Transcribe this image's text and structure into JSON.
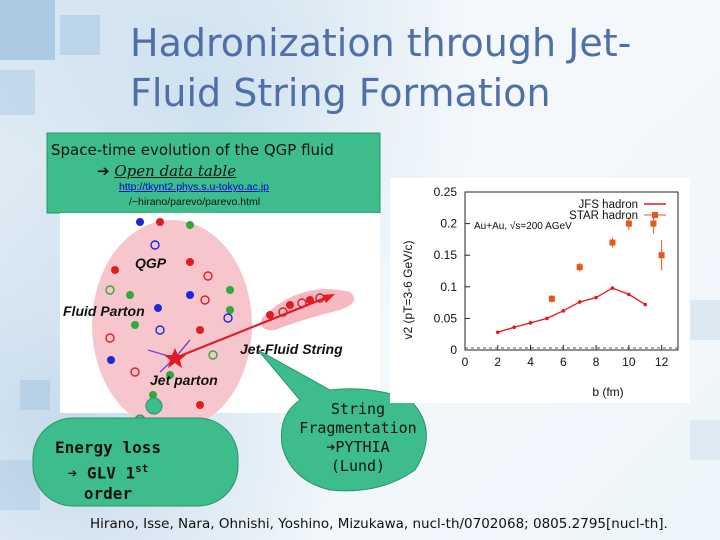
{
  "slide": {
    "title": "Hadronization through Jet-Fluid String Formation",
    "title_line1": "Hadronization through Jet-",
    "title_line2": "Fluid String Formation"
  },
  "callout_top": {
    "line1": "Space-time evolution of the QGP fluid",
    "arrow": "➔",
    "line2": "Open data table",
    "url_line1": "http://tkynt2.phys.s.u-tokyo.ac.jp",
    "url_line2": "/~hirano/parevo/parevo.html"
  },
  "diagram": {
    "labels": {
      "qgp": "QGP",
      "fluid_parton": "Fluid Parton",
      "jet_fluid_string": "Jet-Fluid String",
      "jet_parton": "Jet parton"
    }
  },
  "callout_energy": {
    "line1": "Energy loss",
    "arrow": "➔",
    "line2_prefix": " GLV 1",
    "line2_sup": "st",
    "line3": "order"
  },
  "callout_string": {
    "line1": "String",
    "line2": "Fragmentation",
    "arrow": "➔",
    "line3": "PYTHIA",
    "line4": "(Lund)"
  },
  "chart_data": {
    "type": "line",
    "xlabel": "b (fm)",
    "ylabel": "v2 (pT=3-6 GeV/c)",
    "xlim": [
      0,
      13
    ],
    "ylim": [
      0,
      0.25
    ],
    "xticks": [
      "0",
      "2",
      "4",
      "6",
      "8",
      "10",
      "12"
    ],
    "yticks": [
      "0",
      "0.05",
      "0.1",
      "0.15",
      "0.2",
      "0.25"
    ],
    "annotation": "Au+Au, √s=200 AGeV",
    "legend_position": "top-right",
    "series": [
      {
        "name": "JFS hadron",
        "style": "line",
        "color": "#e8141e",
        "x": [
          2,
          3,
          4,
          5,
          6,
          7,
          8,
          9,
          10,
          11
        ],
        "y": [
          0.028,
          0.036,
          0.043,
          0.05,
          0.062,
          0.076,
          0.083,
          0.098,
          0.088,
          0.072
        ]
      },
      {
        "name": "STAR hadron",
        "style": "points-with-errors",
        "color": "#e8561c",
        "x": [
          5.3,
          7.0,
          9.0,
          10.0,
          11.5,
          12.0
        ],
        "y": [
          0.081,
          0.131,
          0.17,
          0.2,
          0.2,
          0.15
        ],
        "yerr": [
          0.006,
          0.007,
          0.008,
          0.01,
          0.016,
          0.024
        ]
      }
    ]
  },
  "citation": "Hirano, Isse, Nara, Ohnishi, Yoshino, Mizukawa, nucl-th/0702068; 0805.2795[nucl-th]."
}
